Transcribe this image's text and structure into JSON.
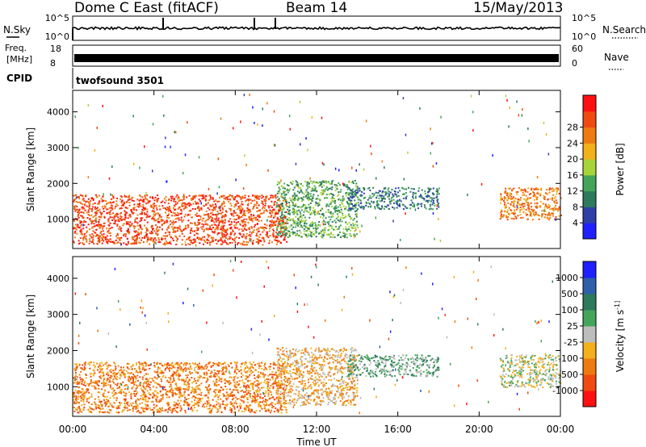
{
  "header": {
    "station": "Dome C East (fitACF)",
    "beam": "Beam 14",
    "date": "15/May/2013"
  },
  "noise_panel": {
    "left_label": "N.Sky",
    "right_label": "N.Search",
    "left_ticks": [
      "10^5",
      "10^0"
    ],
    "right_ticks": [
      "10^5",
      "10^0"
    ]
  },
  "freq_panel": {
    "left_label_1": "Freq.",
    "left_label_2": "[MHz]",
    "right_label": "Nave",
    "left_ticks": [
      "18",
      "8"
    ],
    "right_ticks": [
      "60",
      "0"
    ]
  },
  "cpid": {
    "label": "CPID",
    "program": "twofsound 3501"
  },
  "time_axis": {
    "title": "Time UT",
    "ticks": [
      "00:00",
      "04:00",
      "08:00",
      "12:00",
      "16:00",
      "20:00",
      "00:00"
    ]
  },
  "colors": {
    "power": [
      "#1f1fff",
      "#2f3fa8",
      "#2e7a5c",
      "#43a55a",
      "#a8d43a",
      "#f2b01a",
      "#ee7a10",
      "#f04a10",
      "#ff1010"
    ],
    "velocity": [
      "#ff1010",
      "#f04a10",
      "#ee7a10",
      "#f2b01a",
      "#bdbdbd",
      "#43a55a",
      "#2e7a5c",
      "#2f5fa8",
      "#1f1fff"
    ]
  },
  "chart_data": [
    {
      "type": "heatmap",
      "title": "",
      "xlabel": "Time UT",
      "ylabel": "Slant Range [km]",
      "ylim": [
        180,
        4600
      ],
      "y_ticks": [
        1000,
        2000,
        3000,
        4000
      ],
      "colorbar": {
        "label": "Power [dB]",
        "ticks": [
          4,
          8,
          12,
          16,
          20,
          24,
          28
        ],
        "range": [
          0,
          30
        ]
      },
      "echo_regions": [
        {
          "t_start": 0.0,
          "t_end": 10.5,
          "range_low": 300,
          "range_high": 1700,
          "value": 27
        },
        {
          "t_start": 10.0,
          "t_end": 14.0,
          "range_low": 500,
          "range_high": 2100,
          "value": 10
        },
        {
          "t_start": 13.5,
          "t_end": 18.0,
          "range_low": 1300,
          "range_high": 1900,
          "value": 8
        },
        {
          "t_start": 21.0,
          "t_end": 24.0,
          "range_low": 1000,
          "range_high": 1900,
          "value": 22
        }
      ]
    },
    {
      "type": "heatmap",
      "title": "",
      "xlabel": "Time UT",
      "ylabel": "Slant Range [km]",
      "ylim": [
        180,
        4600
      ],
      "y_ticks": [
        1000,
        2000,
        3000,
        4000
      ],
      "colorbar": {
        "label": "Velocity [m s^-1]",
        "ticks": [
          "-1000",
          "-500",
          "-100",
          "-25",
          "25",
          "100",
          "500",
          "1000"
        ]
      },
      "echo_regions": [
        {
          "t_start": 0.0,
          "t_end": 10.5,
          "range_low": 300,
          "range_high": 1700,
          "value": "-100"
        },
        {
          "t_start": 10.0,
          "t_end": 14.0,
          "range_low": 500,
          "range_high": 2100,
          "value": "-25"
        },
        {
          "t_start": 13.5,
          "t_end": 18.0,
          "range_low": 1300,
          "range_high": 1900,
          "value": "100"
        },
        {
          "t_start": 21.0,
          "t_end": 24.0,
          "range_low": 1000,
          "range_high": 1900,
          "value": "25"
        }
      ]
    }
  ]
}
